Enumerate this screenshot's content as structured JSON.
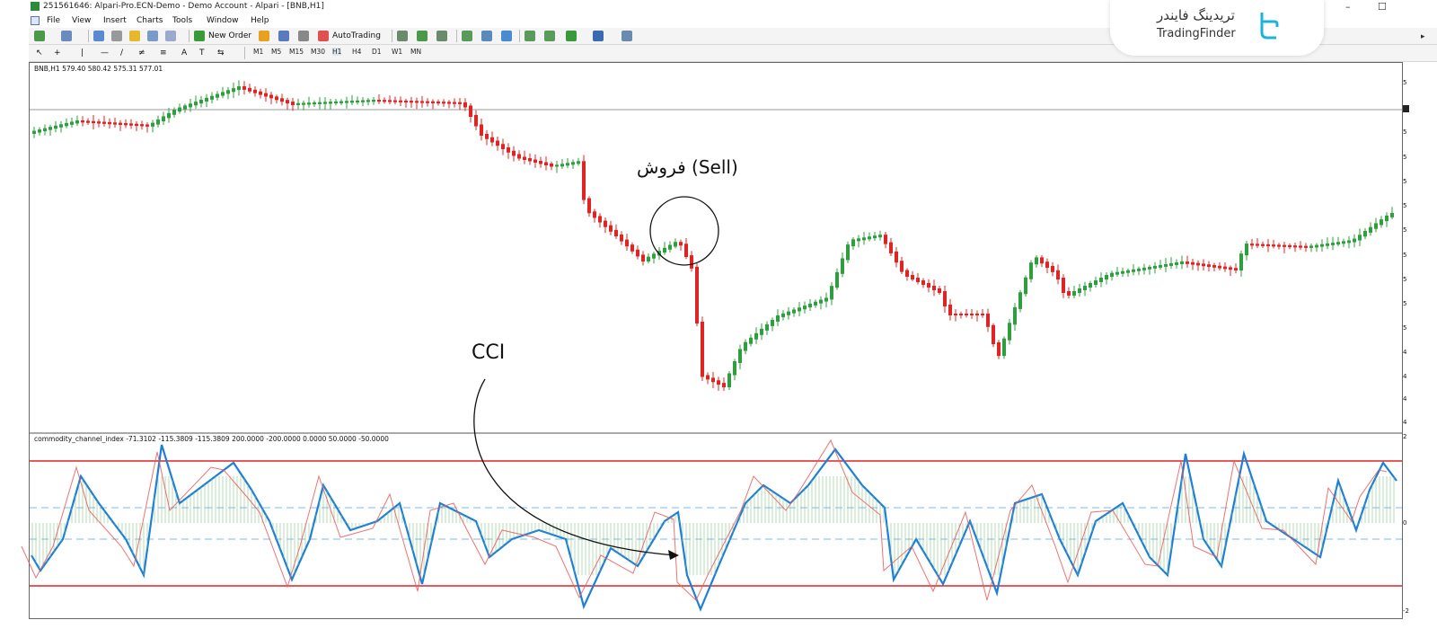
{
  "window": {
    "title": "251561646: Alpari-Pro.ECN-Demo - Demo Account - Alpari - [BNB,H1]",
    "controls": [
      "–",
      "☐"
    ]
  },
  "menu": [
    "File",
    "View",
    "Insert",
    "Charts",
    "Tools",
    "Window",
    "Help"
  ],
  "toolbar": {
    "new_order": "New Order",
    "auto_trading": "AutoTrading",
    "timeframes": [
      "M1",
      "M5",
      "M15",
      "M30",
      "H1",
      "H4",
      "D1",
      "W1",
      "MN"
    ]
  },
  "logo": {
    "fa": "تریدینگ فایندر",
    "en": "TradingFinder"
  },
  "chart": {
    "symbol_info": "BNB,H1  579.40 580.42 575.31 577.01",
    "indicator_info": "commodity_channel_index -71.3102 -115.3809 -115.3809 200.0000 -200.0000 0.0000 50.0000 -50.0000",
    "colors": {
      "bull": "#2e9e3e",
      "bear": "#e02424",
      "cci_line": "#1e7fd6",
      "signal_line": "#e85a5a",
      "level_line": "#e02424",
      "dash_line": "#7fb8e8",
      "hist": "#7dbb7d"
    },
    "annotations": {
      "sell": "فروش (Sell)",
      "cci": "CCI"
    },
    "axis_labels": [
      "5",
      "5",
      "5",
      "5",
      "5",
      "5",
      "5",
      "5",
      "5",
      "5",
      "4",
      "4",
      "4",
      "4"
    ],
    "ind_axis_labels": [
      "2",
      "0",
      "-2"
    ]
  }
}
